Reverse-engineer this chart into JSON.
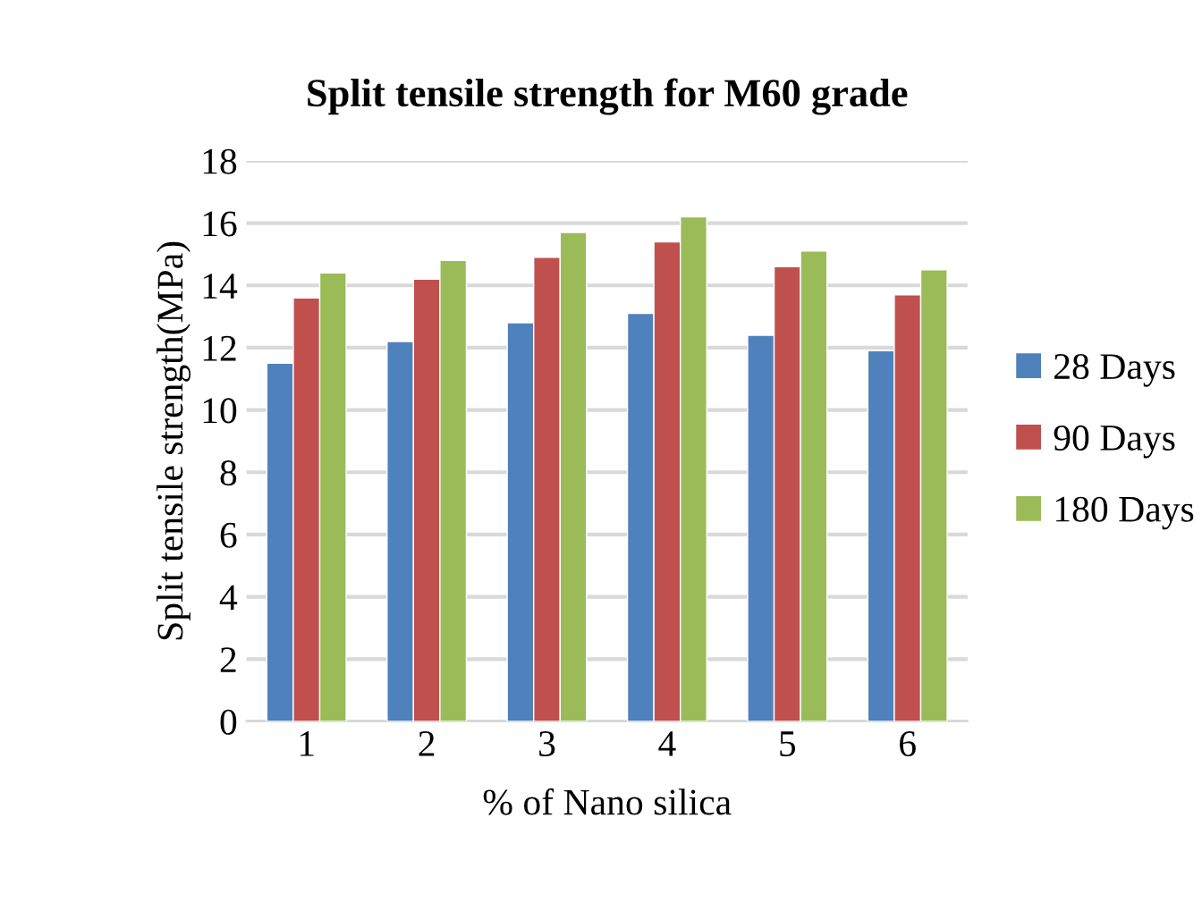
{
  "chart_data": {
    "type": "bar",
    "title": "Split tensile strength for M60 grade",
    "xlabel": "% of Nano silica",
    "ylabel": "Split tensile strength(MPa)",
    "categories": [
      "1",
      "2",
      "3",
      "4",
      "5",
      "6"
    ],
    "series": [
      {
        "name": "28 Days",
        "color": "#4f81bd",
        "values": [
          11.5,
          12.2,
          12.8,
          13.1,
          12.4,
          11.9
        ]
      },
      {
        "name": "90 Days",
        "color": "#c0504d",
        "values": [
          13.6,
          14.2,
          14.9,
          15.4,
          14.6,
          13.7
        ]
      },
      {
        "name": "180 Days",
        "color": "#9bbb59",
        "values": [
          14.4,
          14.8,
          15.7,
          16.2,
          15.1,
          14.5
        ]
      }
    ],
    "ylim": [
      0,
      18
    ],
    "yticks": [
      0,
      2,
      4,
      6,
      8,
      10,
      12,
      14,
      16,
      18
    ],
    "grid": "y",
    "legend": "right"
  }
}
